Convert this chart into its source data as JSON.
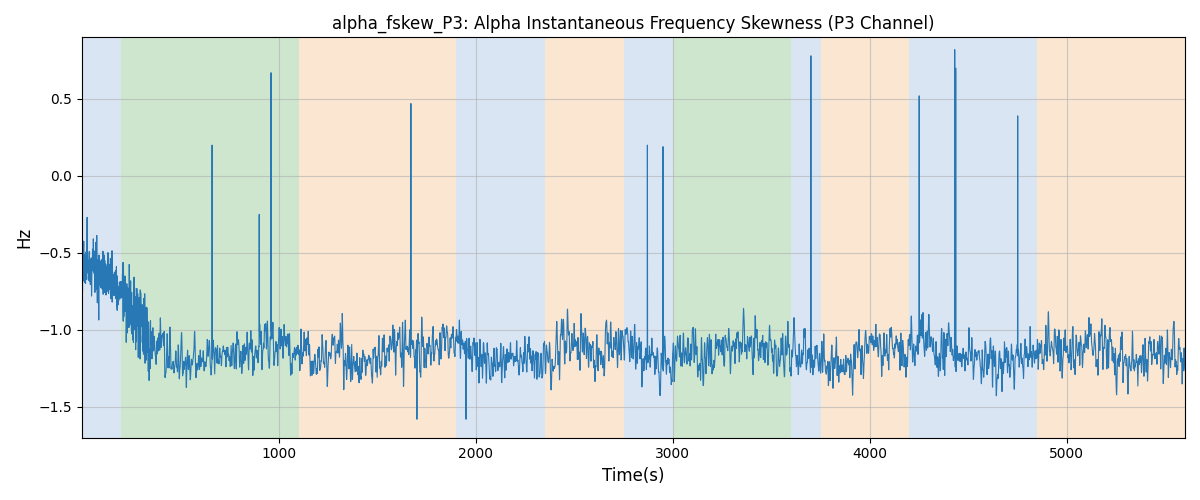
{
  "title": "alpha_fskew_P3: Alpha Instantaneous Frequency Skewness (P3 Channel)",
  "xlabel": "Time(s)",
  "ylabel": "Hz",
  "xlim": [
    0,
    5600
  ],
  "ylim": [
    -1.7,
    0.9
  ],
  "yticks": [
    -1.5,
    -1.0,
    -0.5,
    0.0,
    0.5
  ],
  "xticks": [
    1000,
    2000,
    3000,
    4000,
    5000
  ],
  "line_color": "#2878b5",
  "line_width": 0.8,
  "bg_regions": [
    {
      "xmin": 0,
      "xmax": 200,
      "color": "#aec6e8",
      "alpha": 0.45
    },
    {
      "xmin": 200,
      "xmax": 1100,
      "color": "#90c990",
      "alpha": 0.45
    },
    {
      "xmin": 1100,
      "xmax": 1900,
      "color": "#f5c89a",
      "alpha": 0.45
    },
    {
      "xmin": 1900,
      "xmax": 2350,
      "color": "#aec6e8",
      "alpha": 0.45
    },
    {
      "xmin": 2350,
      "xmax": 2750,
      "color": "#f5c89a",
      "alpha": 0.45
    },
    {
      "xmin": 2750,
      "xmax": 3000,
      "color": "#aec6e8",
      "alpha": 0.45
    },
    {
      "xmin": 3000,
      "xmax": 3600,
      "color": "#90c990",
      "alpha": 0.45
    },
    {
      "xmin": 3600,
      "xmax": 3750,
      "color": "#aec6e8",
      "alpha": 0.45
    },
    {
      "xmin": 3750,
      "xmax": 4200,
      "color": "#f5c89a",
      "alpha": 0.45
    },
    {
      "xmin": 4200,
      "xmax": 4850,
      "color": "#aec6e8",
      "alpha": 0.45
    },
    {
      "xmin": 4850,
      "xmax": 5600,
      "color": "#f5c89a",
      "alpha": 0.45
    }
  ],
  "grid_color": "#b0b0b0",
  "grid_alpha": 0.6,
  "random_seed": 12345,
  "n_points": 5500,
  "figsize": [
    12,
    5
  ],
  "dpi": 100
}
